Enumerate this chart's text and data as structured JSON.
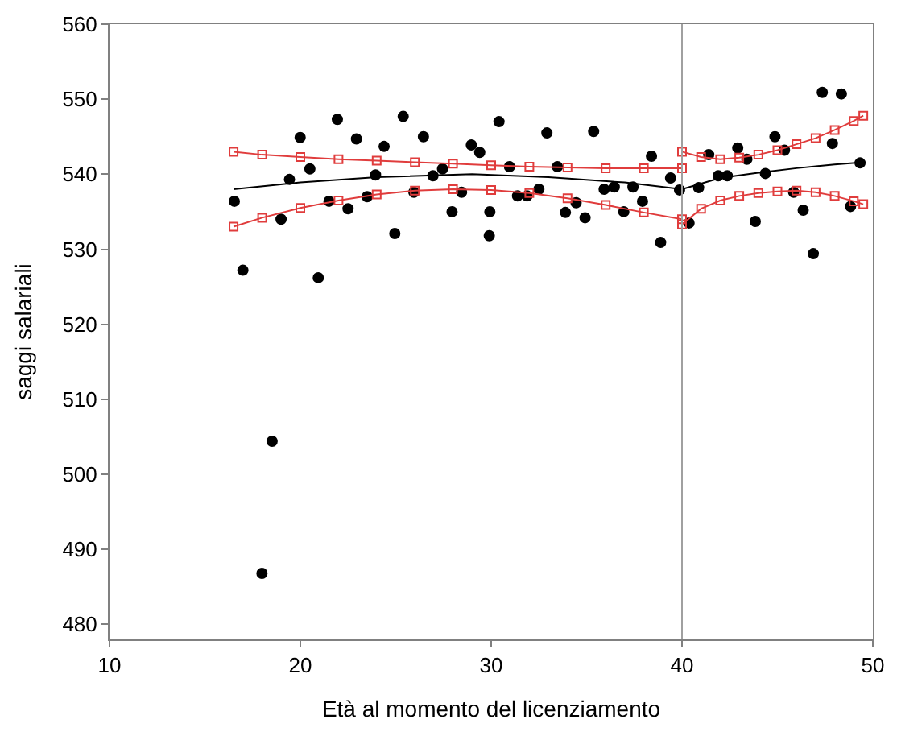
{
  "chart_data": {
    "type": "scatter",
    "xlabel": "Età al momento del licenziamento",
    "ylabel": "saggi salariali",
    "xlim": [
      10,
      50
    ],
    "xticks": [
      10,
      20,
      30,
      40,
      50
    ],
    "ylim": [
      478,
      560
    ],
    "yticks": [
      480,
      490,
      500,
      510,
      520,
      530,
      540,
      550,
      560
    ],
    "ref_lines": [
      {
        "axis": "x",
        "value": 40,
        "color": "#a0a0a0"
      }
    ],
    "series": [
      {
        "color": "#000000",
        "marker": "circle",
        "x": [
          16.54,
          16.99,
          17.99,
          18.52,
          18.99,
          19.43,
          19.99,
          20.5,
          20.94,
          21.5,
          21.94,
          22.5,
          22.94,
          23.5,
          23.94,
          24.39,
          24.95,
          25.39,
          25.95,
          26.45,
          26.95,
          27.45,
          27.95,
          28.45,
          28.96,
          29.4,
          29.9,
          29.93,
          30.41,
          30.96,
          31.38,
          31.88,
          32.5,
          32.92,
          33.47,
          33.89,
          34.45,
          34.92,
          35.37,
          35.92,
          36.45,
          36.95,
          37.43,
          37.93,
          38.4,
          38.88,
          39.4,
          39.87,
          40.37,
          40.87,
          41.4,
          41.9,
          42.37,
          42.92,
          43.4,
          43.84,
          44.37,
          44.87,
          45.37,
          45.85,
          46.35,
          46.88,
          47.35,
          47.88,
          48.35,
          48.83,
          49.33
        ],
        "values": [
          536.4,
          527.2,
          486.8,
          504.4,
          534.0,
          539.3,
          544.9,
          540.7,
          526.2,
          536.4,
          547.3,
          535.4,
          544.7,
          537.0,
          539.9,
          543.7,
          532.1,
          547.7,
          537.6,
          545.0,
          539.8,
          540.7,
          535.0,
          537.6,
          543.9,
          542.9,
          531.8,
          535.0,
          547.0,
          541.0,
          537.1,
          537.1,
          538.0,
          545.5,
          541.0,
          534.9,
          536.2,
          534.2,
          545.7,
          538.0,
          538.3,
          535.0,
          538.3,
          536.4,
          542.4,
          530.9,
          539.5,
          537.9,
          533.5,
          538.2,
          542.6,
          539.8,
          539.8,
          543.5,
          542.0,
          533.7,
          540.1,
          545.0,
          543.2,
          537.6,
          535.2,
          529.4,
          550.9,
          544.1,
          550.7,
          535.7,
          541.5
        ]
      },
      {
        "type": "line",
        "color": "#000000",
        "marker": "none",
        "x": [
          16.5,
          20,
          24,
          29,
          33,
          37,
          40,
          42,
          44,
          46,
          48,
          49.5
        ],
        "values": [
          538.0,
          538.9,
          539.6,
          540.0,
          539.6,
          538.9,
          538.0,
          539.5,
          540.2,
          540.8,
          541.3,
          541.6
        ]
      },
      {
        "type": "line",
        "color": "#e03c3c",
        "marker": "square",
        "x": [
          16.5,
          18,
          20,
          22,
          24,
          26,
          28,
          30,
          32,
          34,
          36,
          38,
          40
        ],
        "values": [
          543.0,
          542.6,
          542.3,
          542.0,
          541.8,
          541.6,
          541.4,
          541.2,
          541.0,
          540.9,
          540.8,
          540.8,
          540.8
        ]
      },
      {
        "type": "line",
        "color": "#e03c3c",
        "marker": "square",
        "x": [
          16.5,
          18,
          20,
          22,
          24,
          26,
          28,
          30,
          32,
          34,
          36,
          38,
          40
        ],
        "values": [
          533.0,
          534.2,
          535.5,
          536.5,
          537.3,
          537.8,
          538.0,
          537.9,
          537.5,
          536.8,
          535.9,
          534.9,
          534.0
        ]
      },
      {
        "type": "line",
        "color": "#e03c3c",
        "marker": "square",
        "x": [
          40,
          41,
          42,
          43,
          44,
          45,
          46,
          47,
          48,
          49,
          49.5
        ],
        "values": [
          543.0,
          542.3,
          542.0,
          542.2,
          542.6,
          543.2,
          544.0,
          544.8,
          545.9,
          547.1,
          547.8
        ]
      },
      {
        "type": "line",
        "color": "#e03c3c",
        "marker": "square",
        "x": [
          40,
          41,
          42,
          43,
          44,
          45,
          46,
          47,
          48,
          49,
          49.5
        ],
        "values": [
          533.3,
          535.4,
          536.5,
          537.1,
          537.5,
          537.7,
          537.8,
          537.6,
          537.1,
          536.4,
          536.0
        ]
      }
    ]
  }
}
